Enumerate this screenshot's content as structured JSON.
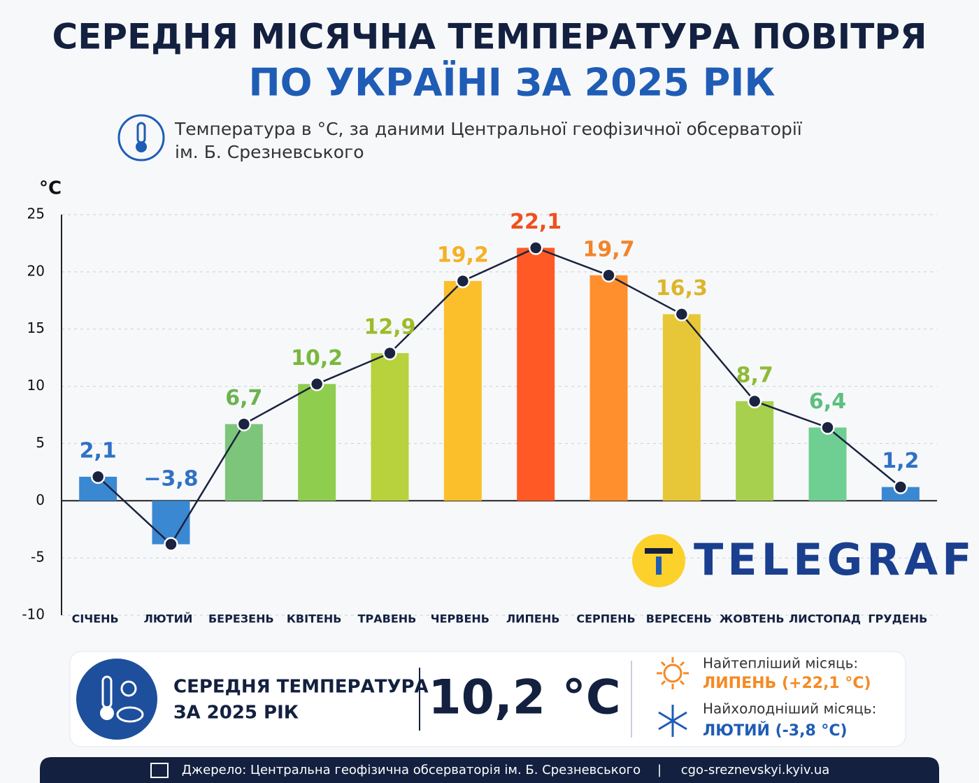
{
  "title": [
    "СЕРЕДНЯ МІСЯЧНА ТЕМПЕРАТУРА ПОВІТРЯ",
    "ПО УКРАЇНІ ЗА 2025 РІК"
  ],
  "subtitle": [
    "Температура в °C, за даними Центральної геофізичної обсерваторії",
    "ім. Б. Срезневського"
  ],
  "chart_data": {
    "type": "bar-line",
    "y_label": "°C",
    "categories": [
      "СІЧЕНЬ",
      "ЛЮТИЙ",
      "БЕРЕЗЕНЬ",
      "КВІТЕНЬ",
      "ТРАВЕНЬ",
      "ЧЕРВЕНЬ",
      "ЛИПЕНЬ",
      "СЕРПЕНЬ",
      "ВЕРЕСЕНЬ",
      "ЖОВТЕНЬ",
      "ЛИСТОПАД",
      "ГРУДЕНЬ"
    ],
    "values": [
      2.1,
      -3.8,
      6.7,
      10.2,
      12.9,
      19.2,
      22.1,
      19.7,
      16.3,
      8.7,
      6.4,
      1.2
    ],
    "value_labels": [
      "2,1",
      "−3,8",
      "6,7",
      "10,2",
      "12,9",
      "19,2",
      "22,1",
      "19,7",
      "16,3",
      "8,7",
      "6,4",
      "1,2"
    ],
    "colors": [
      "#3b88d2",
      "#3b88d2",
      "#7dc57a",
      "#8fcd4f",
      "#b7d23c",
      "#fbbf2c",
      "#ff5a26",
      "#ff8f2c",
      "#e7c738",
      "#a8d04f",
      "#6fcf92",
      "#3b88d2"
    ],
    "label_colors": [
      "#2f72c4",
      "#2f72c4",
      "#6cb350",
      "#78b83c",
      "#9dbb2a",
      "#f4b124",
      "#f0501e",
      "#f2842a",
      "#ddb52a",
      "#8dbb36",
      "#5cbf7e",
      "#2f72c4"
    ],
    "line_color": "#1a2340",
    "ylim": [
      -10,
      25
    ],
    "yticks": [
      -10,
      -5,
      0,
      5,
      10,
      15,
      20,
      25
    ],
    "grid": true
  },
  "logo": "TELEGRAF",
  "summary": {
    "label": [
      "СЕРЕДНЯ ТЕМПЕРАТУРА",
      "ЗА 2025 РІК"
    ],
    "value": "10,2 °C",
    "warmest_title": "Найтепліший місяць:",
    "warmest": "ЛИПЕНЬ (+22,1 °C)",
    "coldest_title": "Найхолодніший місяць:",
    "coldest": "ЛЮТИЙ (-3,8 °C)"
  },
  "footer": {
    "source": "Джерело: Центральна геофізична обсерваторія ім. Б. Срезневського",
    "separator": "|",
    "url": "cgo-sreznevskyi.kyiv.ua"
  }
}
